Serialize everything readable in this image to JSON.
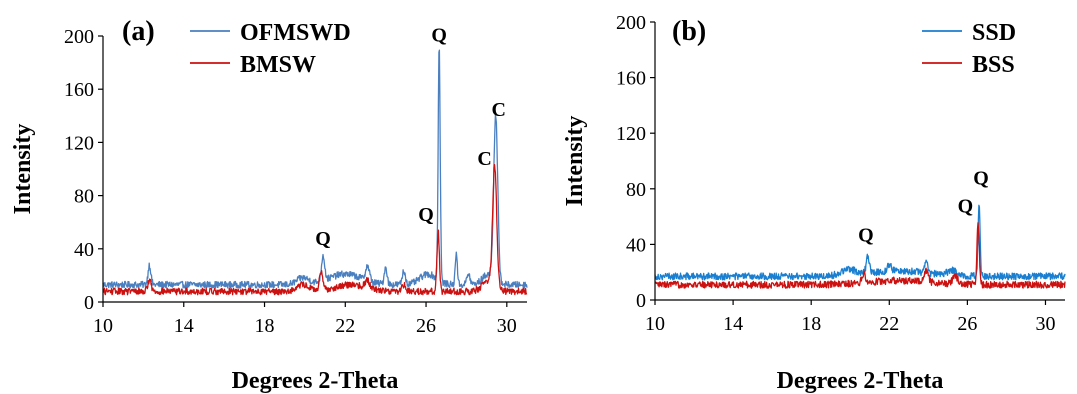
{
  "chart_data": [
    {
      "type": "line",
      "panel_label": "(a)",
      "xlabel": "Degrees 2-Theta",
      "ylabel": "Intensity",
      "xlim": [
        10,
        31
      ],
      "ylim": [
        0,
        200
      ],
      "x_ticks": [
        10,
        14,
        18,
        22,
        26,
        30
      ],
      "y_ticks": [
        0,
        40,
        80,
        120,
        160,
        200
      ],
      "legend_position": "top-center",
      "colors": {
        "OFMSWD": "#4a7fc0",
        "BMSW": "#cc1111"
      },
      "series": [
        {
          "name": "OFMSWD",
          "color": "#4a7fc0",
          "baseline": 13,
          "peaks": [
            [
              12.3,
              15,
              0.07
            ],
            [
              19.9,
              5,
              0.3
            ],
            [
              20.9,
              19,
              0.08
            ],
            [
              22.0,
              8,
              0.8
            ],
            [
              23.1,
              11,
              0.1
            ],
            [
              24.0,
              13,
              0.07
            ],
            [
              24.9,
              10,
              0.08
            ],
            [
              26.1,
              8,
              0.4
            ],
            [
              26.65,
              177,
              0.05
            ],
            [
              27.5,
              25,
              0.05
            ],
            [
              28.1,
              8,
              0.08
            ],
            [
              29.45,
              123,
              0.1
            ],
            [
              29.1,
              8,
              0.3
            ]
          ]
        },
        {
          "name": "BMSW",
          "color": "#cc1111",
          "baseline": 8,
          "peaks": [
            [
              12.3,
              9,
              0.08
            ],
            [
              19.9,
              5,
              0.3
            ],
            [
              20.8,
              13,
              0.08
            ],
            [
              22.3,
              5,
              0.8
            ],
            [
              23.1,
              6,
              0.1
            ],
            [
              24.9,
              5,
              0.1
            ],
            [
              26.6,
              45,
              0.06
            ],
            [
              29.4,
              90,
              0.1
            ],
            [
              29.1,
              8,
              0.3
            ]
          ]
        }
      ],
      "annotations": [
        {
          "text": "Q",
          "x": 20.9,
          "y": 43
        },
        {
          "text": "Q",
          "x": 26.0,
          "y": 61
        },
        {
          "text": "Q",
          "x": 26.65,
          "y": 196
        },
        {
          "text": "C",
          "x": 28.9,
          "y": 103
        },
        {
          "text": "C",
          "x": 29.6,
          "y": 140
        }
      ]
    },
    {
      "type": "line",
      "panel_label": "(b)",
      "xlabel": "Degrees 2-Theta",
      "ylabel": "Intensity",
      "xlim": [
        10,
        31
      ],
      "ylim": [
        0,
        200
      ],
      "x_ticks": [
        10,
        14,
        18,
        22,
        26,
        30
      ],
      "y_ticks": [
        0,
        40,
        80,
        120,
        160,
        200
      ],
      "legend_position": "top-right",
      "colors": {
        "SSD": "#1a7fd0",
        "BSS": "#cc1111"
      },
      "series": [
        {
          "name": "SSD",
          "color": "#1a7fd0",
          "baseline": 17,
          "peaks": [
            [
              19.9,
              4,
              0.4
            ],
            [
              20.9,
              12,
              0.08
            ],
            [
              22.0,
              5,
              0.1
            ],
            [
              23.9,
              11,
              0.07
            ],
            [
              25.2,
              4,
              0.2
            ],
            [
              26.6,
              53,
              0.05
            ],
            [
              22.5,
              4,
              1.5
            ]
          ]
        },
        {
          "name": "BSS",
          "color": "#cc1111",
          "baseline": 11,
          "peaks": [
            [
              20.7,
              6,
              0.1
            ],
            [
              23.9,
              8,
              0.1
            ],
            [
              25.4,
              5,
              0.15
            ],
            [
              26.55,
              44,
              0.06
            ],
            [
              22.5,
              3,
              1.5
            ]
          ]
        }
      ],
      "annotations": [
        {
          "text": "Q",
          "x": 20.8,
          "y": 42
        },
        {
          "text": "Q",
          "x": 25.9,
          "y": 63
        },
        {
          "text": "Q",
          "x": 26.7,
          "y": 83
        }
      ]
    }
  ]
}
